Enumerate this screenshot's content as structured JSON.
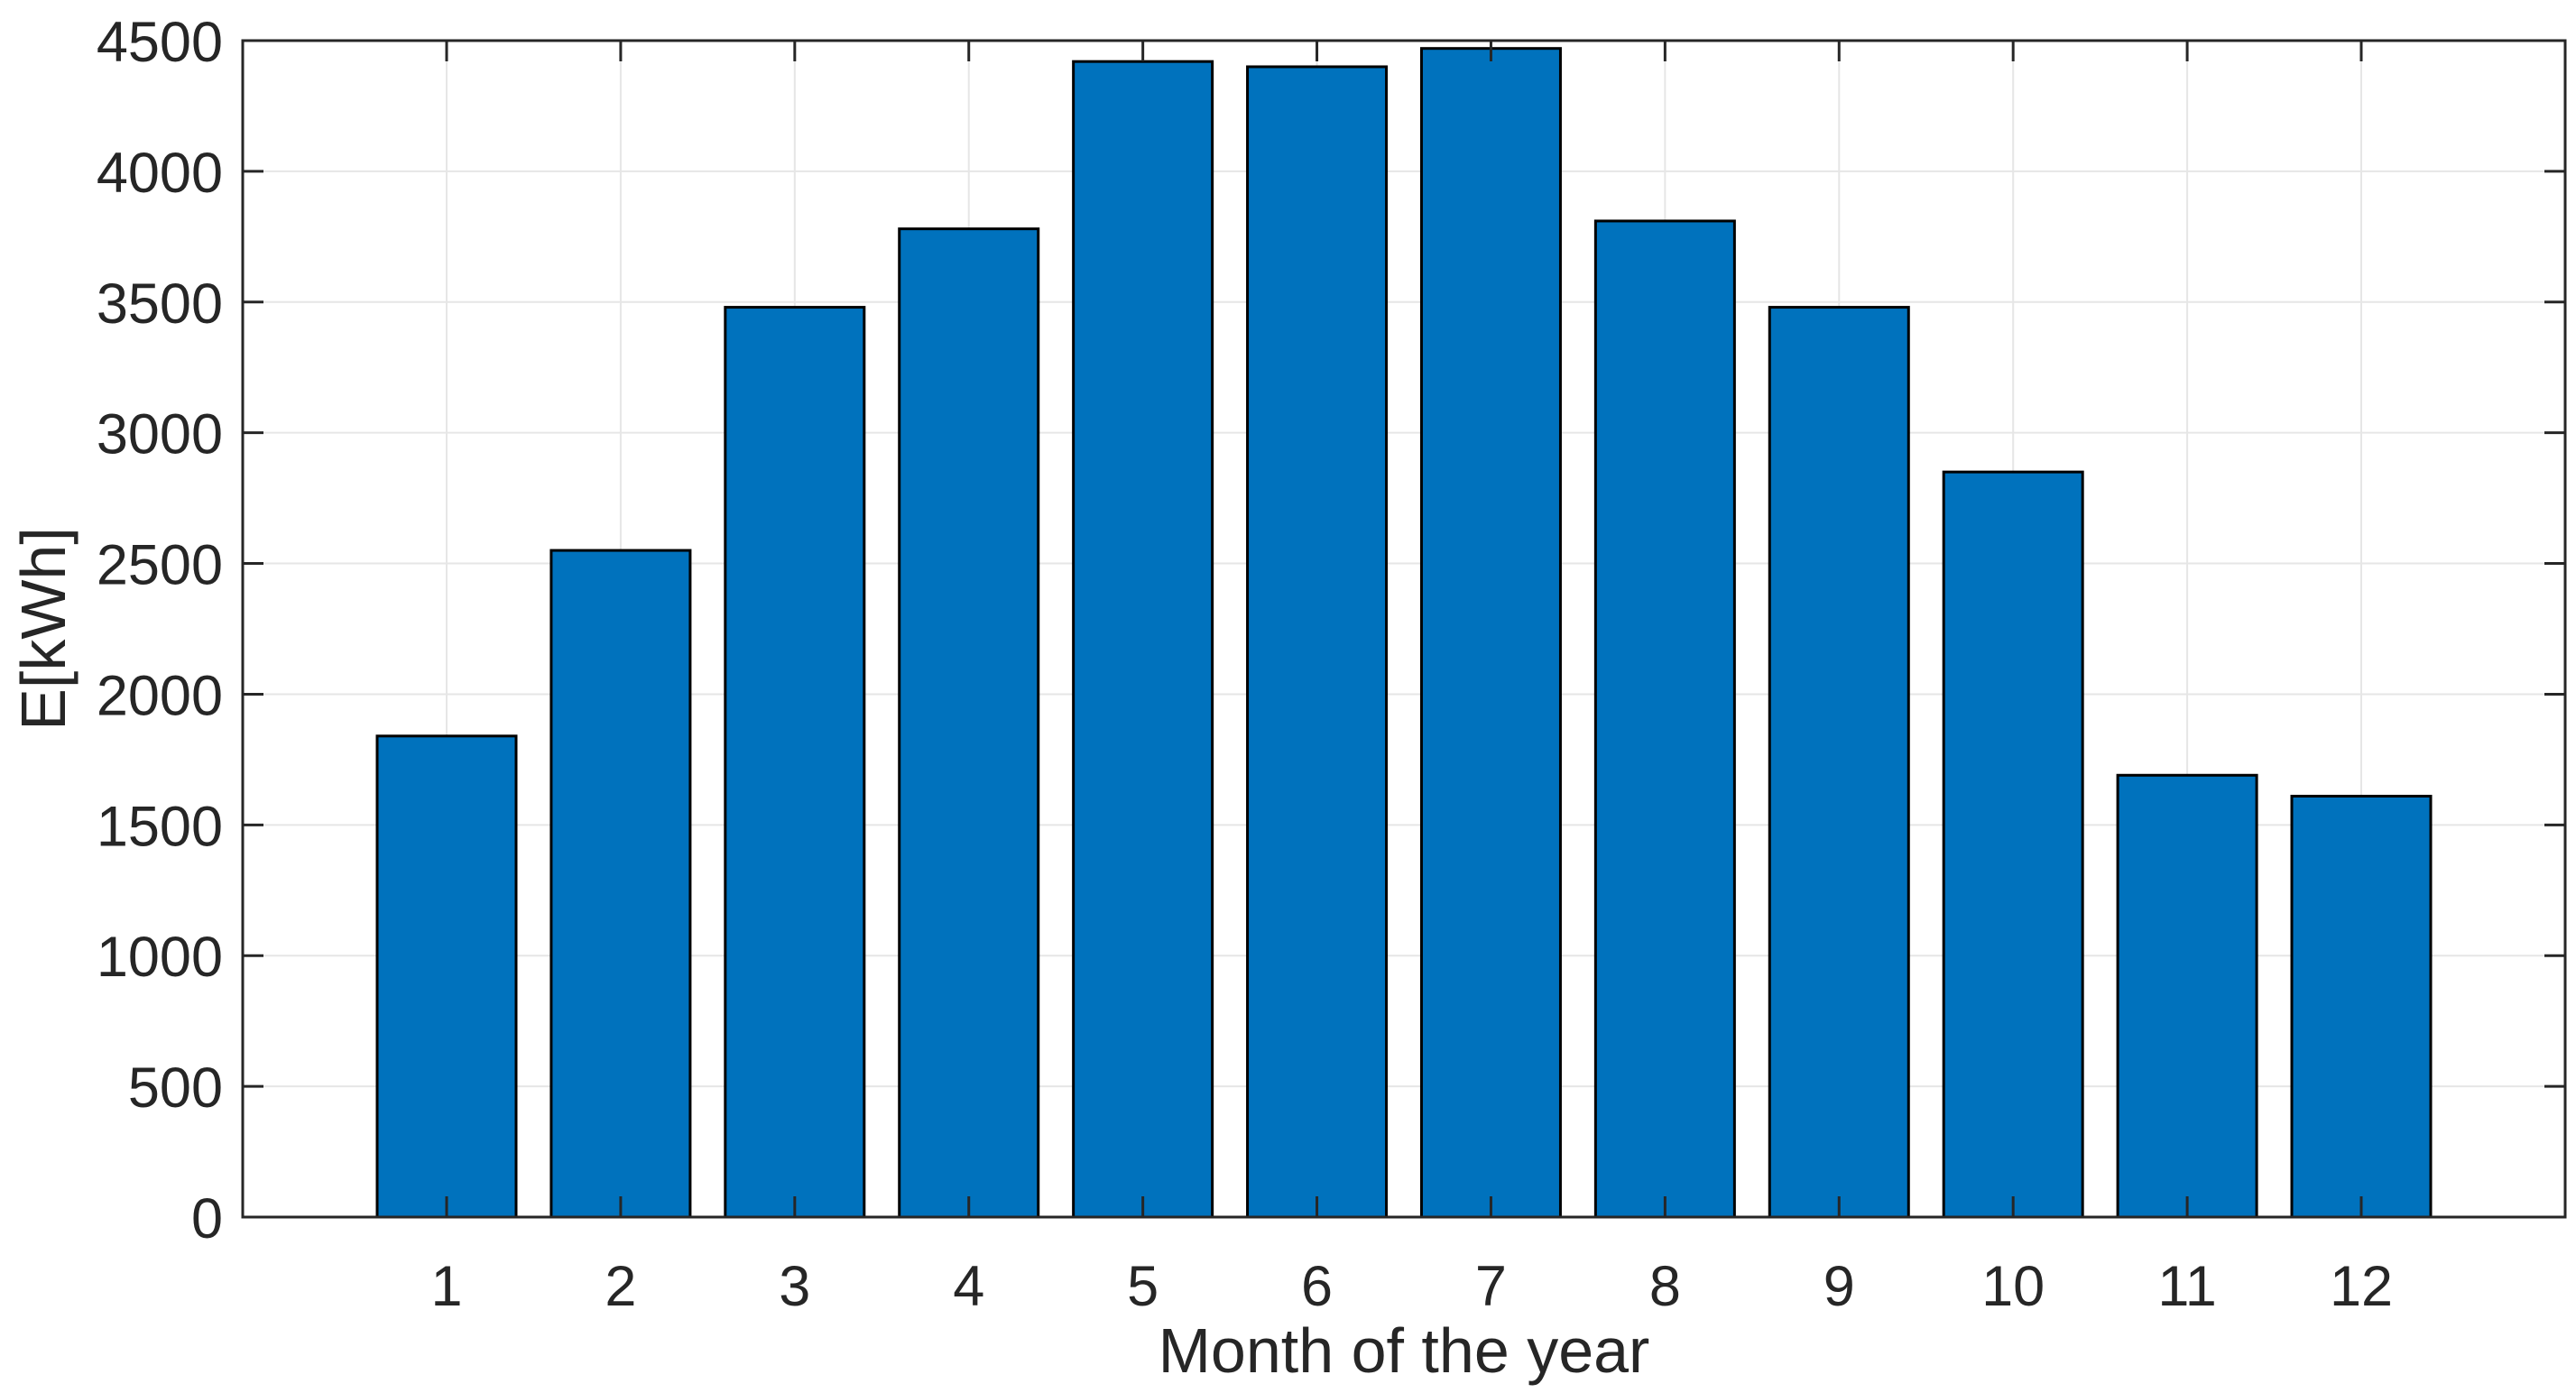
{
  "chart_data": {
    "type": "bar",
    "title": "",
    "xlabel": "Month of the year",
    "ylabel": "E[kWh]",
    "categories": [
      "1",
      "2",
      "3",
      "4",
      "5",
      "6",
      "7",
      "8",
      "9",
      "10",
      "11",
      "12"
    ],
    "values": [
      1840,
      2550,
      3480,
      3780,
      4420,
      4400,
      4470,
      3810,
      3480,
      2850,
      1690,
      1610
    ],
    "ylim": [
      0,
      4500
    ],
    "yticks": [
      0,
      500,
      1000,
      1500,
      2000,
      2500,
      3000,
      3500,
      4000,
      4500
    ],
    "grid": true,
    "legend": "none",
    "bar_color": "#0072BD",
    "bar_edge_color": "#000000",
    "axis_color": "#262626",
    "grid_color": "#E6E6E6",
    "text_color": "#262626",
    "background_color": "#FFFFFF"
  }
}
